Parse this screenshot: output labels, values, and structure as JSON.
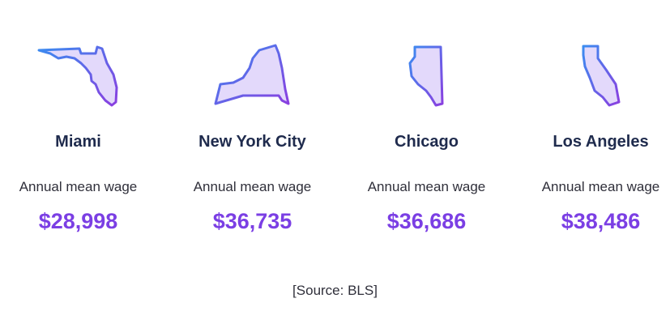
{
  "cards": [
    {
      "city": "Miami",
      "label": "Annual mean wage",
      "wage": "$28,998"
    },
    {
      "city": "New York City",
      "label": "Annual mean wage",
      "wage": "$36,735"
    },
    {
      "city": "Chicago",
      "label": "Annual mean wage",
      "wage": "$36,686"
    },
    {
      "city": "Los Angeles",
      "label": "Annual mean wage",
      "wage": "$38,486"
    }
  ],
  "source": "[Source: BLS]"
}
